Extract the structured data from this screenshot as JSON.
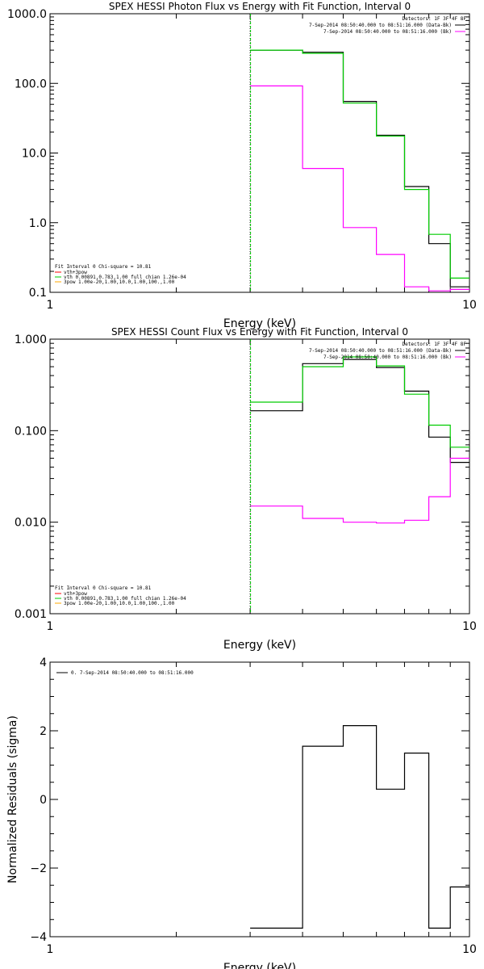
{
  "chart_data": [
    {
      "type": "line",
      "title": "SPEX HESSI Photon Flux vs Energy with Fit Function, Interval 0",
      "xlabel": "Energy (keV)",
      "ylabel": "",
      "xscale": "log",
      "yscale": "log",
      "xlim": [
        1,
        10
      ],
      "ylim": [
        0.1,
        1000
      ],
      "xticks": [
        "1",
        "10"
      ],
      "yticks": [
        "0.1",
        "1.0",
        "10.0",
        "100.0",
        "1000.0"
      ],
      "vline": 3,
      "edges": [
        3,
        4,
        5,
        6,
        7,
        8,
        9,
        10
      ],
      "series": [
        {
          "name": "data",
          "color": "#000000",
          "values": [
            300,
            280,
            55,
            18,
            3.3,
            0.5,
            0.12
          ]
        },
        {
          "name": "vth+3pow",
          "color": "#00cc00",
          "values": [
            300,
            270,
            52,
            17.5,
            3.0,
            0.68,
            0.16
          ]
        },
        {
          "name": "3pow",
          "color": "#ff00ff",
          "values": [
            92,
            6.0,
            0.85,
            0.35,
            0.12,
            0.105,
            0.11
          ]
        }
      ],
      "legend_right": {
        "header": "Detectors: 1F 3F 4F 8F",
        "lines": [
          "7-Sep-2014 08:50:40.000 to 08:51:16.000 (Data-Bk)",
          "7-Sep-2014 08:50:40.000 to 08:51:16.000 (Bk)"
        ]
      },
      "legend_left": {
        "header": "Fit Interval 0   Chi-square = 10.81",
        "items": [
          "vth+3pow",
          "vth 0.00891,0.783,1.00  full chian 1.26e-04",
          "3pow 1.00e-20,1.00,10.0,1.00,100.,1.00"
        ]
      }
    },
    {
      "type": "line",
      "title": "SPEX HESSI Count Flux vs Energy with Fit Function, Interval 0",
      "xlabel": "Energy (keV)",
      "ylabel": "",
      "xscale": "log",
      "yscale": "log",
      "xlim": [
        1,
        10
      ],
      "ylim": [
        0.001,
        1
      ],
      "xticks": [
        "1",
        "10"
      ],
      "yticks": [
        "0.001",
        "0.010",
        "0.100",
        "1.000"
      ],
      "vline": 3,
      "edges": [
        3,
        4,
        5,
        6,
        7,
        8,
        9,
        10
      ],
      "series": [
        {
          "name": "data",
          "color": "#000000",
          "values": [
            0.165,
            0.54,
            0.6,
            0.49,
            0.27,
            0.085,
            0.045
          ]
        },
        {
          "name": "vth+3pow",
          "color": "#00cc00",
          "values": [
            0.205,
            0.5,
            0.64,
            0.51,
            0.25,
            0.115,
            0.066
          ]
        },
        {
          "name": "3pow",
          "color": "#ff00ff",
          "values": [
            0.015,
            0.011,
            0.01,
            0.0098,
            0.0105,
            0.019,
            0.05
          ]
        }
      ],
      "legend_right": {
        "header": "Detectors: 1F 3F 4F 8F",
        "lines": [
          "7-Sep-2014 08:50:40.000 to 08:51:16.000 (Data-Bk)",
          "7-Sep-2014 08:50:40.000 to 08:51:16.000 (Bk)"
        ]
      },
      "legend_left": {
        "header": "Fit Interval 0   Chi-square = 10.81",
        "items": [
          "vth+3pow",
          "vth 0.00891,0.783,1.00  full chian 1.26e-04",
          "3pow 1.00e-20,1.00,10.0,1.00,100.,1.00"
        ]
      }
    },
    {
      "type": "line",
      "title": "",
      "xlabel": "Energy (keV)",
      "ylabel": "Normalized Residuals (sigma)",
      "xscale": "log",
      "yscale": "linear",
      "xlim": [
        1,
        10
      ],
      "ylim": [
        -4,
        4
      ],
      "xticks": [
        "1",
        "10"
      ],
      "yticks": [
        "-4",
        "-2",
        "0",
        "2",
        "4"
      ],
      "edges": [
        3,
        4,
        5,
        6,
        7,
        8,
        9,
        10
      ],
      "series": [
        {
          "name": "0. 7-Sep-2014 08:50:40.000 to 08:51:16.000",
          "color": "#000000",
          "values": [
            -3.75,
            1.55,
            2.15,
            0.3,
            1.35,
            -3.75,
            -2.55
          ]
        }
      ],
      "legend_left": {
        "header": "",
        "items": [
          "0. 7-Sep-2014 08:50:40.000 to 08:51:16.000"
        ]
      }
    }
  ]
}
